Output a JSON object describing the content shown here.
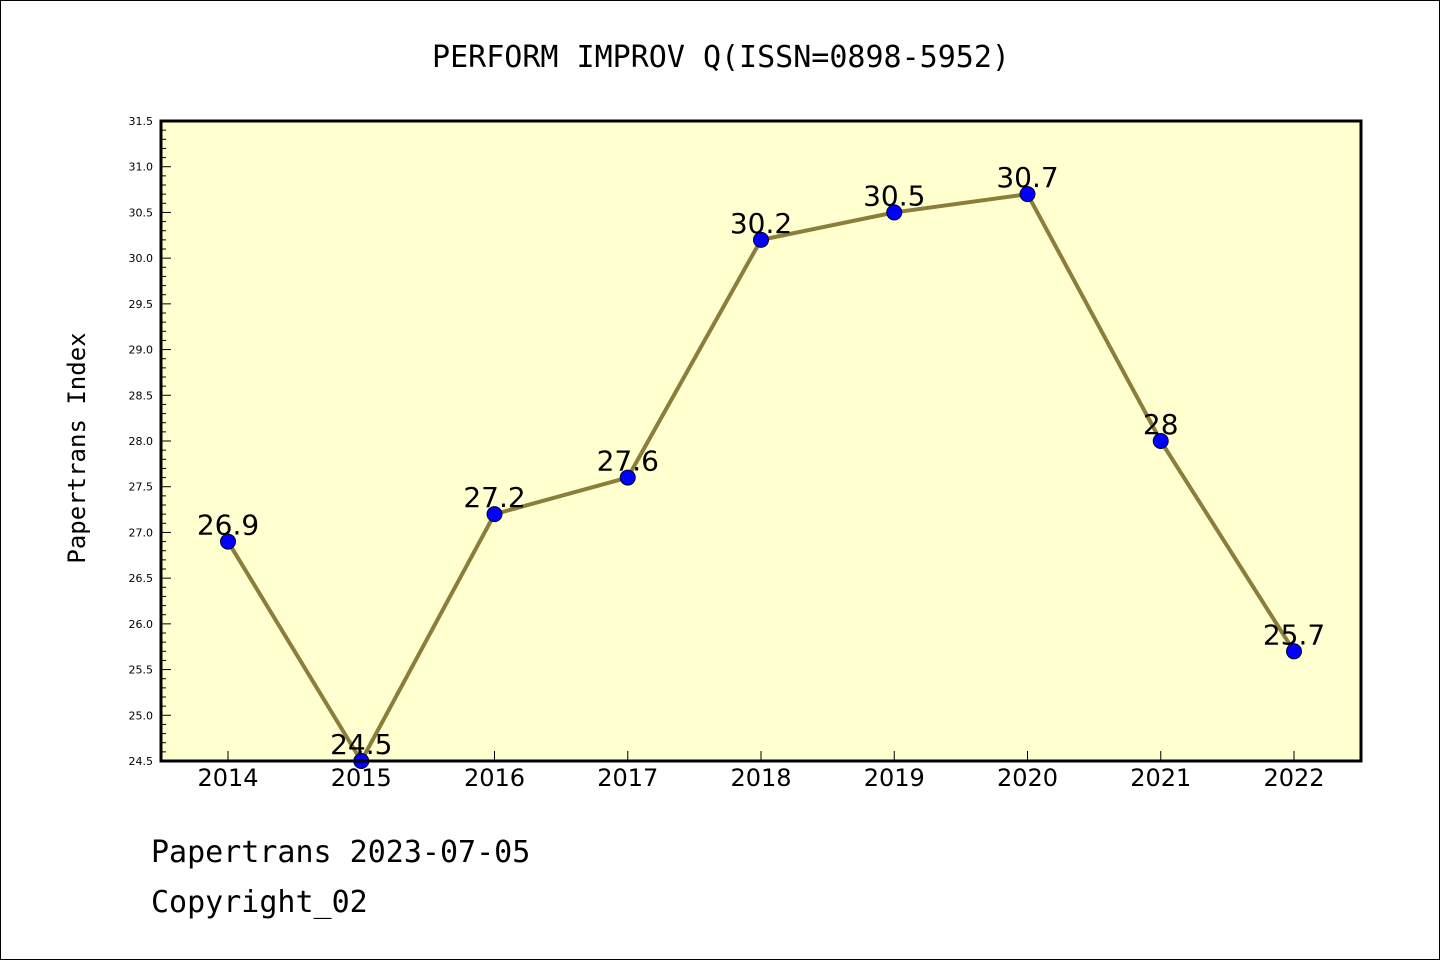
{
  "chart_data": {
    "type": "line",
    "title": "PERFORM IMPROV Q(ISSN=0898-5952)",
    "ylabel": "Papertrans Index",
    "xlabel": "",
    "categories": [
      "2014",
      "2015",
      "2016",
      "2017",
      "2018",
      "2019",
      "2020",
      "2021",
      "2022"
    ],
    "series": [
      {
        "values": [
          26.9,
          24.5,
          27.2,
          27.6,
          30.2,
          30.5,
          30.7,
          28,
          25.7
        ],
        "data_labels": [
          "26.9",
          "24.5",
          "27.2",
          "27.6",
          "30.2",
          "30.5",
          "30.7",
          "28",
          "25.7"
        ]
      }
    ],
    "ylim": [
      24.5,
      31.5
    ],
    "yticks": [
      "24.5",
      "25.0",
      "25.5",
      "26.0",
      "26.5",
      "27.0",
      "27.5",
      "28.0",
      "28.5",
      "29.0",
      "29.5",
      "30.0",
      "30.5",
      "31.0",
      "31.5"
    ],
    "grid": false,
    "legend": "none",
    "colors": {
      "plot_bg": "#ffffd0",
      "line": "#8b7d3a",
      "marker": "#0000ff",
      "frame": "#000000"
    }
  },
  "footer": {
    "line1": "Papertrans 2023-07-05",
    "line2": "Copyright_02"
  }
}
